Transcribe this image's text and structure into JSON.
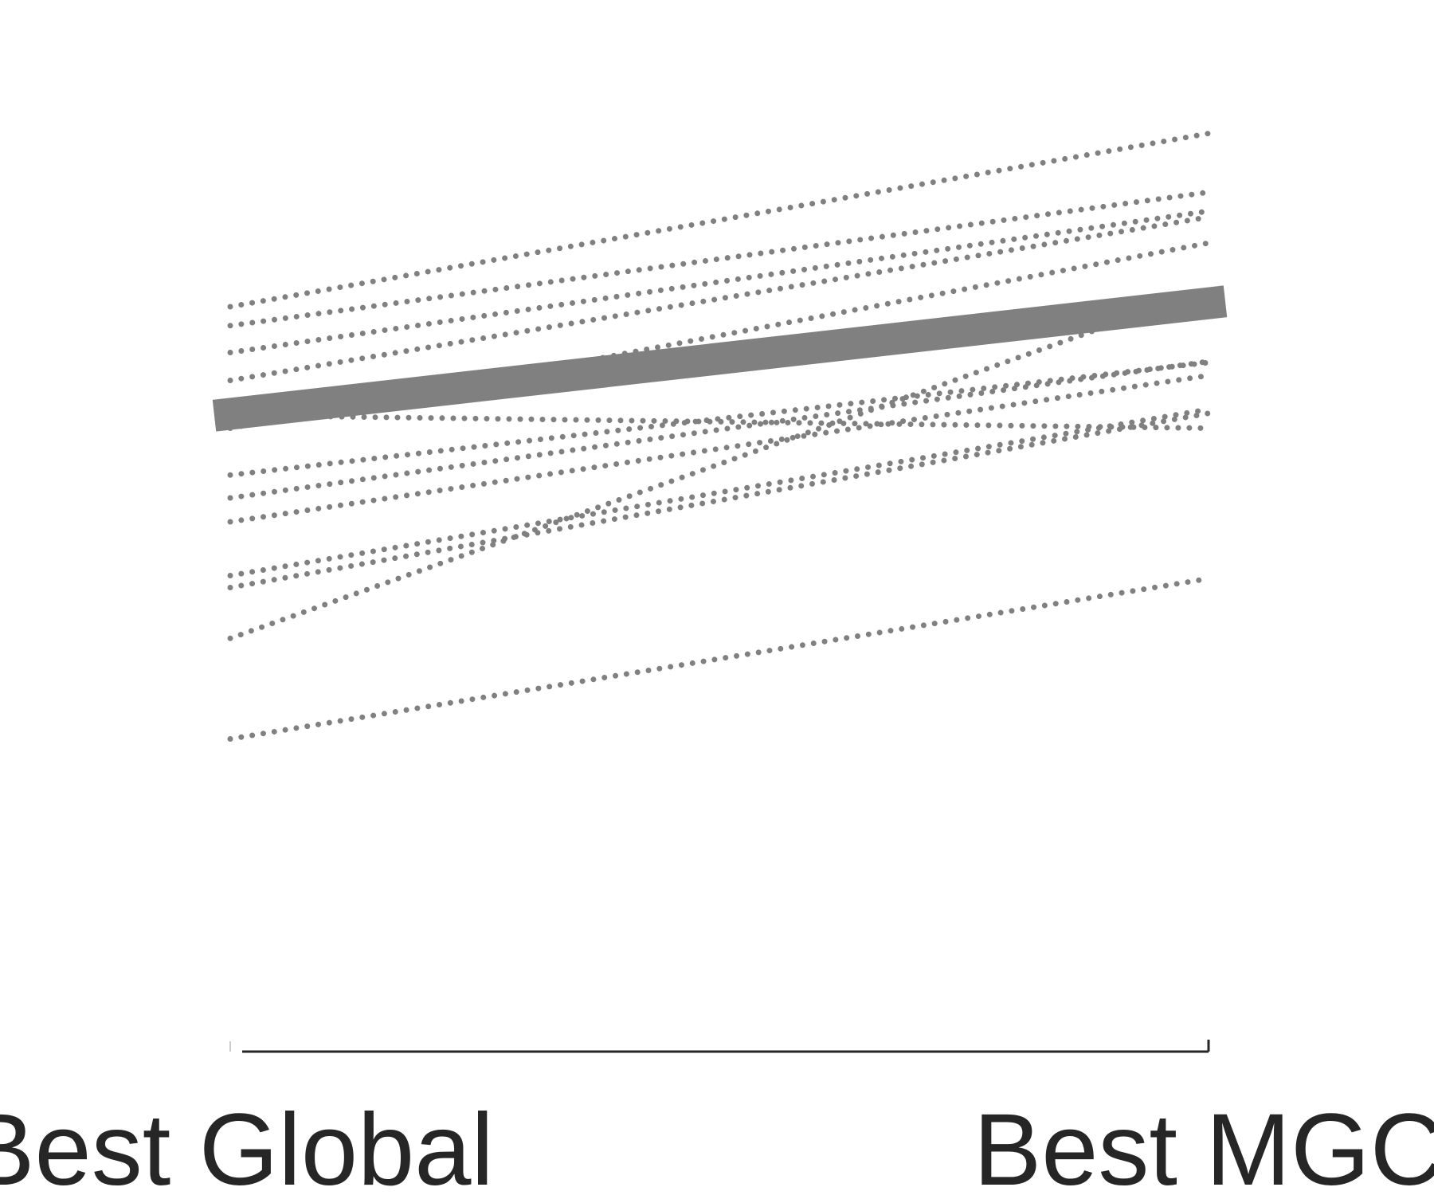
{
  "chart_data": {
    "type": "line",
    "title": "",
    "xlabel": "",
    "ylabel": "",
    "categories": [
      "Best Global",
      "Best MGC"
    ],
    "ylim": [
      0,
      1
    ],
    "grid": false,
    "legend": "none",
    "colors": {
      "series": "#808080",
      "mean": "#808080",
      "axis": "#262626",
      "text": "#262626"
    },
    "series": [
      {
        "values": [
          0.74,
          0.914
        ],
        "style": "dotted"
      },
      {
        "values": [
          0.721,
          0.855
        ],
        "style": "dotted"
      },
      {
        "values": [
          0.694,
          0.836
        ],
        "style": "dotted"
      },
      {
        "values": [
          0.666,
          0.83
        ],
        "style": "dotted"
      },
      {
        "values": [
          0.618,
          0.804
        ],
        "style": "dotted"
      },
      {
        "values": [
          0.631,
          0.618
        ],
        "style": "dotted"
      },
      {
        "values": [
          0.571,
          0.684
        ],
        "style": "dotted"
      },
      {
        "values": [
          0.548,
          0.685
        ],
        "style": "dotted"
      },
      {
        "values": [
          0.524,
          0.671
        ],
        "style": "dotted"
      },
      {
        "values": [
          0.47,
          0.637
        ],
        "style": "dotted"
      },
      {
        "values": [
          0.458,
          0.633
        ],
        "style": "dotted"
      },
      {
        "values": [
          0.407,
          0.757
        ],
        "style": "dotted"
      },
      {
        "values": [
          0.306,
          0.467
        ],
        "style": "dotted"
      }
    ],
    "mean": {
      "values": [
        0.633,
        0.743
      ],
      "style": "solid-thick"
    }
  }
}
